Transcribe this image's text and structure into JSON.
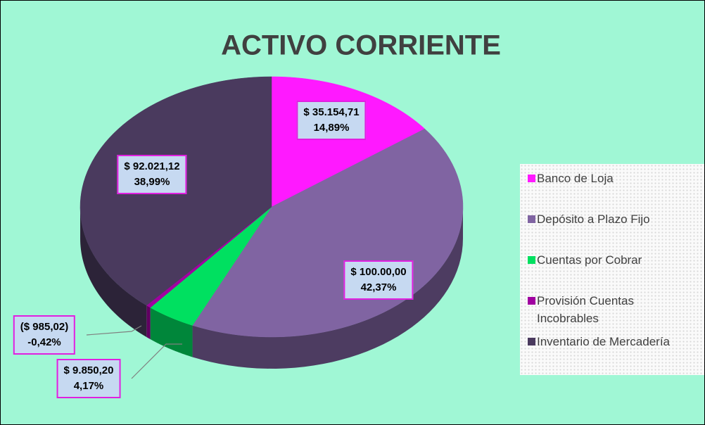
{
  "chart_data": {
    "type": "pie",
    "title": "ACTIVO CORRIENTE",
    "categories": [
      "Banco de Loja",
      "Depósito a Plazo Fijo",
      "Cuentas por Cobrar",
      "Provisión Cuentas Incobrables",
      "Inventario de Mercadería"
    ],
    "values": [
      14.89,
      42.37,
      4.17,
      -0.42,
      38.99
    ],
    "value_labels": [
      "14,89%",
      "42,37%",
      "4,17%",
      "-0,42%",
      "38,99%"
    ],
    "amount_labels": [
      "$ 35.154,71",
      "$ 100.00,00",
      "$ 9.850,20",
      "($ 985,02)",
      "$ 92.021,12"
    ],
    "colors": [
      "#ff19ff",
      "#8064a2",
      "#00e060",
      "#a000a0",
      "#4a3a5e"
    ],
    "legend": "right"
  }
}
